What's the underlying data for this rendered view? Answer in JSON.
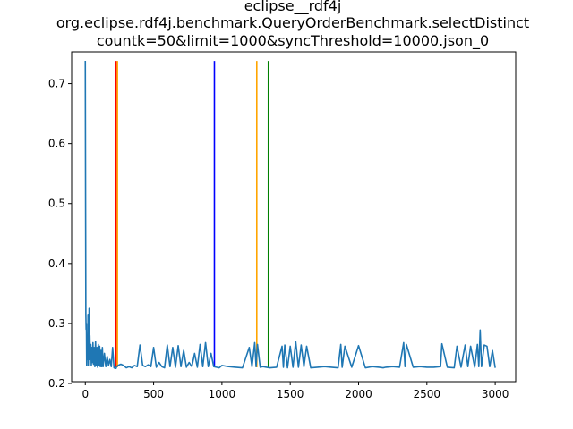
{
  "chart_data": {
    "type": "line",
    "title_lines": [
      "eclipse__rdf4j",
      "org.eclipse.rdf4j.benchmark.QueryOrderBenchmark.selectDistinct",
      "countk=50&limit=1000&syncThreshold=10000.json_0"
    ],
    "xlabel": "",
    "ylabel": "",
    "xlim": [
      -100,
      3150
    ],
    "ylim": [
      0.203,
      0.753
    ],
    "xticks": [
      0,
      500,
      1000,
      1500,
      2000,
      2500,
      3000
    ],
    "yticks": [
      0.2,
      0.3,
      0.4,
      0.5,
      0.6,
      0.7
    ],
    "ytick_labels": [
      "0.2",
      "0.3",
      "0.4",
      "0.5",
      "0.6",
      "0.7"
    ],
    "grid": false,
    "series": [
      {
        "color": "#1f77b4",
        "x": [
          0,
          2,
          4,
          6,
          8,
          10,
          12,
          14,
          16,
          18,
          20,
          22,
          25,
          28,
          30,
          33,
          36,
          40,
          44,
          48,
          52,
          56,
          60,
          65,
          70,
          75,
          80,
          85,
          90,
          95,
          100,
          105,
          110,
          115,
          120,
          125,
          130,
          140,
          150,
          160,
          170,
          180,
          190,
          200,
          210,
          220,
          225,
          230,
          240,
          260,
          280,
          300,
          320,
          340,
          360,
          380,
          400,
          420,
          440,
          460,
          480,
          500,
          520,
          540,
          560,
          580,
          600,
          620,
          640,
          660,
          680,
          700,
          720,
          740,
          760,
          780,
          800,
          820,
          840,
          860,
          880,
          900,
          920,
          940,
          960,
          980,
          1000,
          1050,
          1100,
          1150,
          1200,
          1220,
          1240,
          1250,
          1260,
          1280,
          1300,
          1350,
          1400,
          1440,
          1450,
          1460,
          1480,
          1500,
          1520,
          1540,
          1560,
          1580,
          1600,
          1620,
          1650,
          1700,
          1750,
          1800,
          1850,
          1870,
          1880,
          1900,
          1950,
          2000,
          2050,
          2100,
          2150,
          2180,
          2200,
          2250,
          2300,
          2330,
          2340,
          2350,
          2400,
          2450,
          2500,
          2550,
          2600,
          2610,
          2650,
          2700,
          2720,
          2750,
          2780,
          2800,
          2820,
          2850,
          2870,
          2880,
          2890,
          2900,
          2920,
          2940,
          2960,
          2980,
          3000
        ],
        "y": [
          0.738,
          0.5,
          0.315,
          0.29,
          0.3,
          0.23,
          0.27,
          0.25,
          0.28,
          0.24,
          0.315,
          0.23,
          0.26,
          0.325,
          0.24,
          0.28,
          0.25,
          0.265,
          0.23,
          0.26,
          0.235,
          0.268,
          0.232,
          0.26,
          0.228,
          0.27,
          0.23,
          0.26,
          0.227,
          0.265,
          0.23,
          0.262,
          0.228,
          0.255,
          0.228,
          0.26,
          0.228,
          0.25,
          0.228,
          0.245,
          0.23,
          0.24,
          0.228,
          0.26,
          0.226,
          0.225,
          0.225,
          0.228,
          0.23,
          0.232,
          0.23,
          0.226,
          0.228,
          0.226,
          0.23,
          0.228,
          0.264,
          0.23,
          0.228,
          0.231,
          0.228,
          0.26,
          0.227,
          0.235,
          0.228,
          0.226,
          0.264,
          0.228,
          0.26,
          0.227,
          0.263,
          0.228,
          0.255,
          0.227,
          0.235,
          0.228,
          0.25,
          0.227,
          0.265,
          0.228,
          0.268,
          0.228,
          0.25,
          0.228,
          0.227,
          0.226,
          0.23,
          0.228,
          0.227,
          0.226,
          0.26,
          0.228,
          0.268,
          0.228,
          0.265,
          0.227,
          0.228,
          0.226,
          0.227,
          0.262,
          0.227,
          0.264,
          0.226,
          0.262,
          0.227,
          0.27,
          0.227,
          0.264,
          0.228,
          0.262,
          0.226,
          0.227,
          0.228,
          0.227,
          0.226,
          0.265,
          0.227,
          0.262,
          0.227,
          0.263,
          0.226,
          0.228,
          0.227,
          0.226,
          0.227,
          0.228,
          0.227,
          0.268,
          0.228,
          0.265,
          0.227,
          0.228,
          0.227,
          0.227,
          0.228,
          0.266,
          0.227,
          0.226,
          0.262,
          0.227,
          0.264,
          0.228,
          0.262,
          0.227,
          0.265,
          0.228,
          0.289,
          0.228,
          0.264,
          0.262,
          0.228,
          0.255,
          0.226
        ]
      }
    ],
    "vlines": [
      {
        "x": 225,
        "color": "#ff0000"
      },
      {
        "x": 235,
        "color": "#ffa500"
      },
      {
        "x": 945,
        "color": "#0000ff"
      },
      {
        "x": 1255,
        "color": "#ffa500"
      },
      {
        "x": 1340,
        "color": "#008000"
      }
    ],
    "vline_ymax": 0.738
  }
}
